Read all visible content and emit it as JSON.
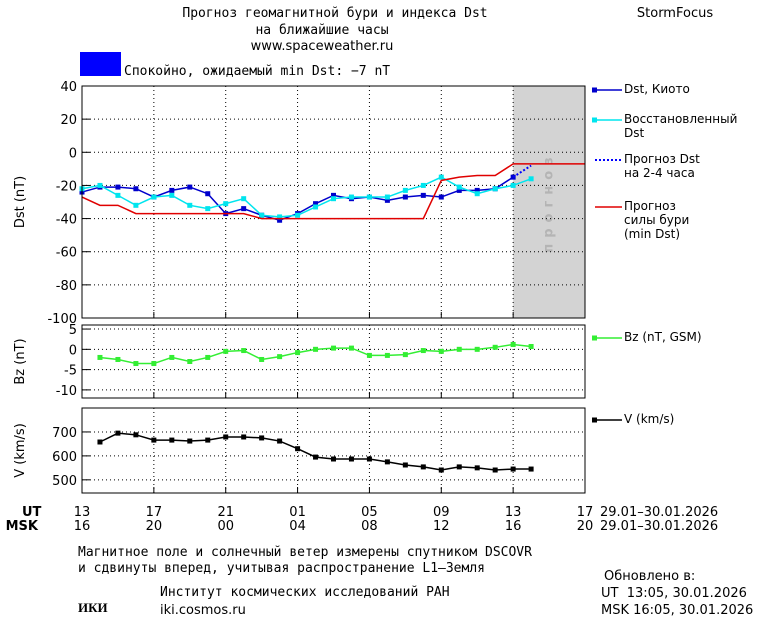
{
  "header": {
    "title": "Прогноз геомагнитной бури и индекса Dst",
    "subtitle": "на ближайшие часы",
    "url": "www.spaceweather.ru",
    "brand": "StormFocus"
  },
  "status": {
    "text": "Спокойно, ожидаемый min Dst: −7 nT",
    "color": "#0000ff"
  },
  "chart_data": [
    {
      "type": "line",
      "ylabel": "Dst (nT)",
      "ylim": [
        -100,
        40
      ],
      "yticks": [
        40,
        20,
        0,
        -20,
        -40,
        -60,
        -80,
        -100
      ],
      "grid": true,
      "forecast_region": {
        "x": [
          24,
          28
        ],
        "label": "прогноз",
        "color": "#d3d3d3"
      },
      "series": [
        {
          "name": "Dst, Киото",
          "color": "#0000cc",
          "marker": true,
          "style": "solid",
          "x": [
            0,
            1,
            2,
            3,
            4,
            5,
            6,
            7,
            8,
            9,
            10,
            11,
            12,
            13,
            14,
            15,
            16,
            17,
            18,
            19,
            20,
            21,
            22,
            23,
            24
          ],
          "values": [
            -24,
            -21,
            -21,
            -22,
            -27,
            -23,
            -21,
            -25,
            -37,
            -34,
            -38,
            -41,
            -37,
            -31,
            -26,
            -28,
            -27,
            -29,
            -27,
            -26,
            -27,
            -23,
            -23,
            -22,
            -15
          ]
        },
        {
          "name": "Восстановленный\nDst",
          "color": "#00e5ee",
          "marker": true,
          "style": "solid",
          "x": [
            0,
            1,
            2,
            3,
            4,
            5,
            6,
            7,
            8,
            9,
            10,
            11,
            12,
            13,
            14,
            15,
            16,
            17,
            18,
            19,
            20,
            21,
            22,
            23,
            24,
            25
          ],
          "values": [
            -22,
            -20,
            -26,
            -32,
            -27,
            -26,
            -32,
            -34,
            -31,
            -28,
            -38,
            -39,
            -38,
            -33,
            -28,
            -27,
            -27,
            -27,
            -23,
            -20,
            -15,
            -21,
            -25,
            -22,
            -20,
            -16
          ]
        },
        {
          "name": "Прогноз Dst\nна 2-4 часа",
          "color": "#0000ff",
          "marker": false,
          "style": "dotted",
          "x": [
            24,
            25
          ],
          "values": [
            -15,
            -8
          ]
        },
        {
          "name": "Прогноз\nсилы бури\n(min Dst)",
          "color": "#e00000",
          "marker": false,
          "style": "solid",
          "x": [
            0,
            1,
            2,
            3,
            4,
            5,
            6,
            7,
            8,
            9,
            10,
            11,
            12,
            13,
            14,
            15,
            16,
            17,
            18,
            19,
            20,
            21,
            22,
            23,
            24,
            25,
            26,
            27,
            28
          ],
          "values": [
            -27,
            -32,
            -32,
            -37,
            -37,
            -37,
            -37,
            -37,
            -37,
            -37,
            -40,
            -40,
            -40,
            -40,
            -40,
            -40,
            -40,
            -40,
            -40,
            -40,
            -17,
            -15,
            -14,
            -14,
            -7,
            -7,
            -7,
            -7,
            -7
          ]
        }
      ]
    },
    {
      "type": "line",
      "ylabel": "Bz (nT)",
      "ylim": [
        -12,
        6
      ],
      "yticks": [
        5,
        0,
        -5,
        -10
      ],
      "grid": true,
      "series": [
        {
          "name": "Bz (nT, GSM)",
          "color": "#33ee33",
          "marker": true,
          "style": "solid",
          "x": [
            1,
            2,
            3,
            4,
            5,
            6,
            7,
            8,
            9,
            10,
            11,
            12,
            13,
            14,
            15,
            16,
            17,
            18,
            19,
            20,
            21,
            22,
            23,
            24,
            25
          ],
          "values": [
            -2,
            -2.5,
            -3.5,
            -3.5,
            -2,
            -3,
            -2,
            -0.5,
            -0.3,
            -2.5,
            -1.8,
            -0.8,
            0,
            0.3,
            0.3,
            -1.5,
            -1.5,
            -1.3,
            -0.3,
            -0.5,
            0,
            0,
            0.5,
            1.2,
            0.7
          ]
        }
      ]
    },
    {
      "type": "line",
      "ylabel": "V (km/s)",
      "ylim": [
        445,
        800
      ],
      "yticks": [
        700,
        600,
        500
      ],
      "grid": true,
      "xlim": [
        0,
        28
      ],
      "xticks": [
        {
          "value": 0,
          "label": "13"
        },
        {
          "value": 4,
          "label": "17"
        },
        {
          "value": 8,
          "label": "21"
        },
        {
          "value": 12,
          "label": "01"
        },
        {
          "value": 16,
          "label": "05"
        },
        {
          "value": 20,
          "label": "09"
        },
        {
          "value": 24,
          "label": "13"
        },
        {
          "value": 28,
          "label": "17"
        }
      ],
      "xticks_msk": [
        {
          "value": 0,
          "label": "16"
        },
        {
          "value": 4,
          "label": "20"
        },
        {
          "value": 8,
          "label": "00"
        },
        {
          "value": 12,
          "label": "04"
        },
        {
          "value": 16,
          "label": "08"
        },
        {
          "value": 20,
          "label": "12"
        },
        {
          "value": 24,
          "label": "16"
        },
        {
          "value": 28,
          "label": "20"
        }
      ],
      "x_rows": [
        "UT",
        "MSK"
      ],
      "date_range": "29.01–30.01.2026",
      "series": [
        {
          "name": "V (km/s)",
          "color": "#000000",
          "marker": true,
          "style": "solid",
          "x": [
            1,
            2,
            3,
            4,
            5,
            6,
            7,
            8,
            9,
            10,
            11,
            12,
            13,
            14,
            15,
            16,
            17,
            18,
            19,
            20,
            21,
            22,
            23,
            24,
            25
          ],
          "values": [
            658,
            695,
            688,
            666,
            666,
            662,
            666,
            679,
            679,
            675,
            662,
            630,
            595,
            587,
            587,
            587,
            575,
            562,
            554,
            541,
            554,
            550,
            541,
            545,
            545
          ]
        }
      ]
    }
  ],
  "footer": {
    "note": [
      "Магнитное поле и солнечный ветер измерены спутником DSCOVR",
      "и сдвинуты вперед, учитывая распространение L1–Земля"
    ],
    "logo": "ИКИ",
    "institute": "Институт космических исследований РАН",
    "site": "iki.cosmos.ru",
    "updated": "Обновлено в:",
    "updated_ut": "UT  13:05, 30.01.2026",
    "updated_msk": "MSK 16:05, 30.01.2026"
  }
}
